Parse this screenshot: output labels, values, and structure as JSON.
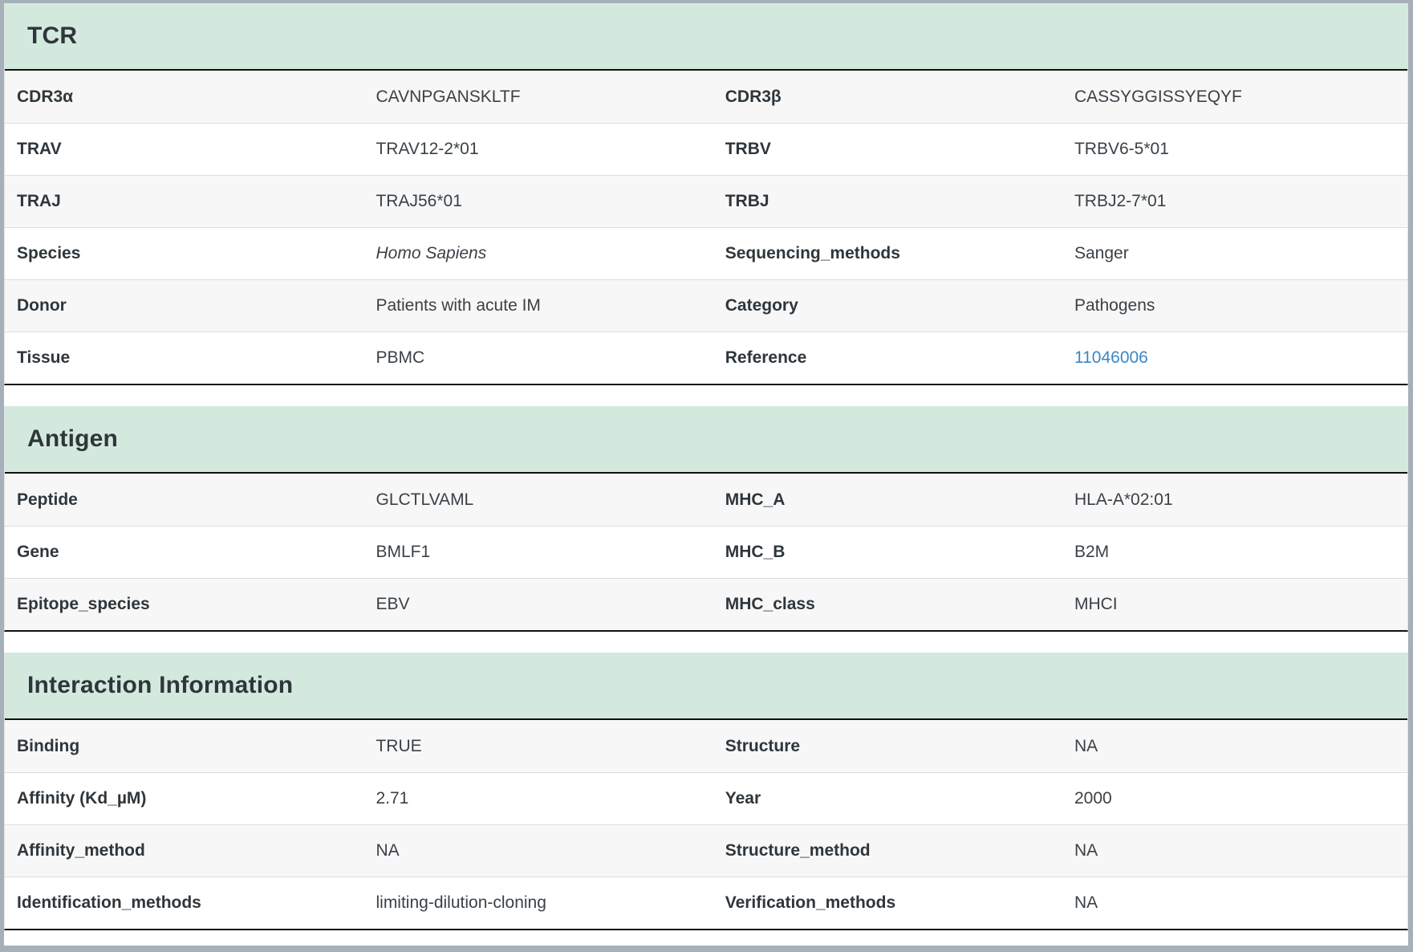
{
  "colors": {
    "section_header_bg": "#d3e9de",
    "link": "#3a87c8",
    "window_frame": "#a6b0b8"
  },
  "sections": {
    "tcr": {
      "title": "TCR",
      "rows": [
        {
          "l1": "CDR3α",
          "v1": "CAVNPGANSKLTF",
          "l2": "CDR3β",
          "v2": "CASSYGGISSYEQYF"
        },
        {
          "l1": "TRAV",
          "v1": "TRAV12-2*01",
          "l2": "TRBV",
          "v2": "TRBV6-5*01"
        },
        {
          "l1": "TRAJ",
          "v1": "TRAJ56*01",
          "l2": "TRBJ",
          "v2": "TRBJ2-7*01"
        },
        {
          "l1": "Species",
          "v1": "Homo Sapiens",
          "l2": "Sequencing_methods",
          "v2": "Sanger"
        },
        {
          "l1": "Donor",
          "v1": "Patients with acute IM",
          "l2": "Category",
          "v2": "Pathogens"
        },
        {
          "l1": "Tissue",
          "v1": "PBMC",
          "l2": "Reference",
          "v2": "11046006"
        }
      ]
    },
    "antigen": {
      "title": "Antigen",
      "rows": [
        {
          "l1": "Peptide",
          "v1": "GLCTLVAML",
          "l2": "MHC_A",
          "v2": "HLA-A*02:01"
        },
        {
          "l1": "Gene",
          "v1": "BMLF1",
          "l2": "MHC_B",
          "v2": "B2M"
        },
        {
          "l1": "Epitope_species",
          "v1": "EBV",
          "l2": "MHC_class",
          "v2": "MHCI"
        }
      ]
    },
    "interaction": {
      "title": "Interaction Information",
      "rows": [
        {
          "l1": "Binding",
          "v1": "TRUE",
          "l2": "Structure",
          "v2": "NA"
        },
        {
          "l1": "Affinity (Kd_µM)",
          "v1": "2.71",
          "l2": "Year",
          "v2": "2000"
        },
        {
          "l1": "Affinity_method",
          "v1": "NA",
          "l2": "Structure_method",
          "v2": "NA"
        },
        {
          "l1": "Identification_methods",
          "v1": "limiting-dilution-cloning",
          "l2": "Verification_methods",
          "v2": "NA"
        }
      ]
    }
  }
}
